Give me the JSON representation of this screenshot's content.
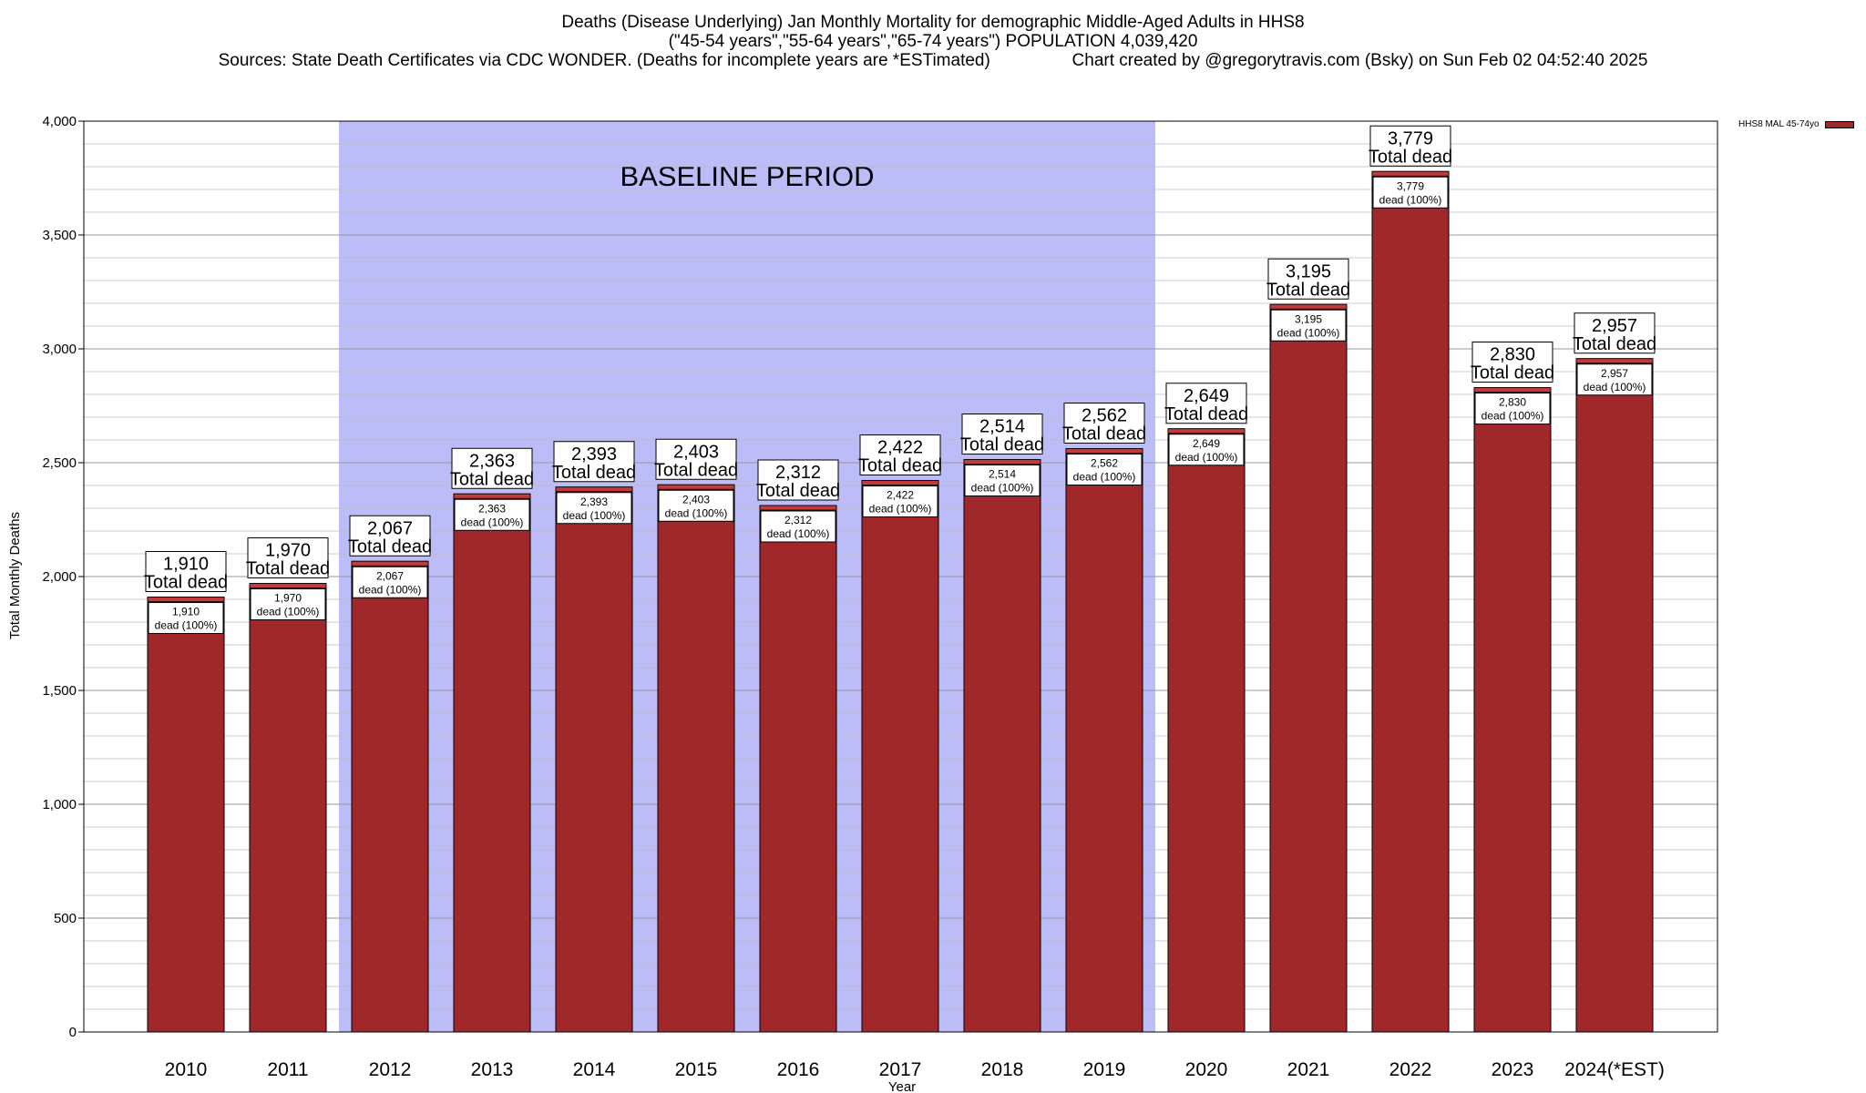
{
  "title_lines": [
    "Deaths (Disease Underlying) Jan Monthly Mortality for demographic Middle-Aged Adults in HHS8",
    "(\"45-54 years\",\"55-64 years\",\"65-74 years\") POPULATION 4,039,420",
    "Sources: State Death Certificates via CDC WONDER. (Deaths for incomplete years are *ESTimated)                 Chart created by @gregorytravis.com (Bsky) on Sun Feb 02 04:52:40 2025"
  ],
  "legend": {
    "label": "HHS8 MAL 45-74yo"
  },
  "colors": {
    "bar": "#a0282a",
    "baseline_shade": "#bcbcf8",
    "grid": "#bbbbbb"
  },
  "chart_data": {
    "type": "bar",
    "xlabel": "Year",
    "ylabel": "Total Monthly Deaths",
    "ylim": [
      0,
      4000
    ],
    "yticks": [
      "0",
      "500",
      "1,000",
      "1,500",
      "2,000",
      "2,500",
      "3,000",
      "3,500",
      "4,000"
    ],
    "grid": true,
    "legend_position": "top-right, outside plot",
    "categories": [
      "2010",
      "2011",
      "2012",
      "2013",
      "2014",
      "2015",
      "2016",
      "2017",
      "2018",
      "2019",
      "2020",
      "2021",
      "2022",
      "2023",
      "2024(*EST)"
    ],
    "series": [
      {
        "name": "HHS8 MAL 45-74yo",
        "values": [
          1910,
          1970,
          2067,
          2363,
          2393,
          2403,
          2312,
          2422,
          2514,
          2562,
          2649,
          3195,
          3779,
          2830,
          2957
        ]
      }
    ],
    "value_labels": [
      "1,910",
      "1,970",
      "2,067",
      "2,363",
      "2,393",
      "2,403",
      "2,312",
      "2,422",
      "2,514",
      "2,562",
      "2,649",
      "3,195",
      "3,779",
      "2,830",
      "2,957"
    ],
    "total_label_suffix": "Total dead",
    "inner_label_suffix": "dead (100%)",
    "annotation": {
      "text": "BASELINE PERIOD",
      "from_category": "2012",
      "to_category": "2019"
    }
  }
}
